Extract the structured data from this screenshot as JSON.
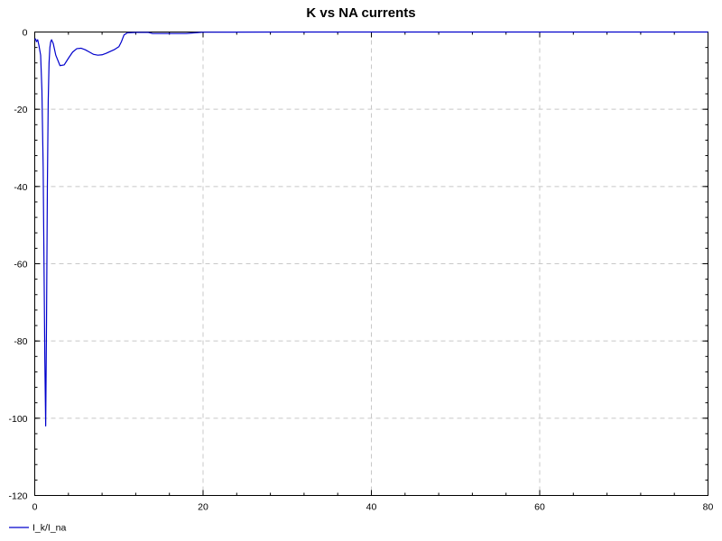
{
  "chart_data": {
    "type": "line",
    "title": "K vs NA currents",
    "xlabel": "",
    "ylabel": "",
    "xlim": [
      0,
      80
    ],
    "ylim": [
      -120,
      0
    ],
    "x_ticks": [
      0,
      20,
      40,
      60,
      80
    ],
    "y_ticks": [
      0,
      -20,
      -40,
      -60,
      -80,
      -100,
      -120
    ],
    "grid": true,
    "legend_position": "bottom-left",
    "series": [
      {
        "name": "I_k/I_na",
        "color": "#0000cc",
        "points": [
          [
            0,
            -2
          ],
          [
            0.1,
            -1.8
          ],
          [
            0.2,
            -2.5
          ],
          [
            0.35,
            -2
          ],
          [
            0.5,
            -3.5
          ],
          [
            0.7,
            -6
          ],
          [
            0.85,
            -15
          ],
          [
            1.0,
            -35
          ],
          [
            1.1,
            -60
          ],
          [
            1.2,
            -85
          ],
          [
            1.3,
            -102
          ],
          [
            1.4,
            -75
          ],
          [
            1.5,
            -40
          ],
          [
            1.6,
            -18
          ],
          [
            1.7,
            -8
          ],
          [
            1.8,
            -4
          ],
          [
            1.9,
            -2.5
          ],
          [
            2.0,
            -2
          ],
          [
            2.2,
            -3
          ],
          [
            2.5,
            -6
          ],
          [
            3.0,
            -8.7
          ],
          [
            3.5,
            -8.5
          ],
          [
            4.0,
            -6.8
          ],
          [
            4.5,
            -5.2
          ],
          [
            5.0,
            -4.3
          ],
          [
            5.5,
            -4.2
          ],
          [
            6.0,
            -4.6
          ],
          [
            6.5,
            -5.2
          ],
          [
            7.0,
            -5.8
          ],
          [
            7.5,
            -6.0
          ],
          [
            8.0,
            -5.9
          ],
          [
            8.5,
            -5.5
          ],
          [
            9.0,
            -5.0
          ],
          [
            9.5,
            -4.5
          ],
          [
            10.0,
            -3.8
          ],
          [
            10.3,
            -2.5
          ],
          [
            10.6,
            -0.8
          ],
          [
            11.0,
            -0.2
          ],
          [
            12.0,
            -0.1
          ],
          [
            13.5,
            -0.1
          ],
          [
            14.0,
            -0.4
          ],
          [
            16.0,
            -0.4
          ],
          [
            18.0,
            -0.4
          ],
          [
            19.0,
            -0.2
          ],
          [
            20.0,
            -0.05
          ],
          [
            30.0,
            0
          ],
          [
            40.0,
            0
          ],
          [
            50.0,
            0
          ],
          [
            60.0,
            0
          ],
          [
            70.0,
            0
          ],
          [
            80.0,
            0
          ]
        ]
      }
    ]
  }
}
